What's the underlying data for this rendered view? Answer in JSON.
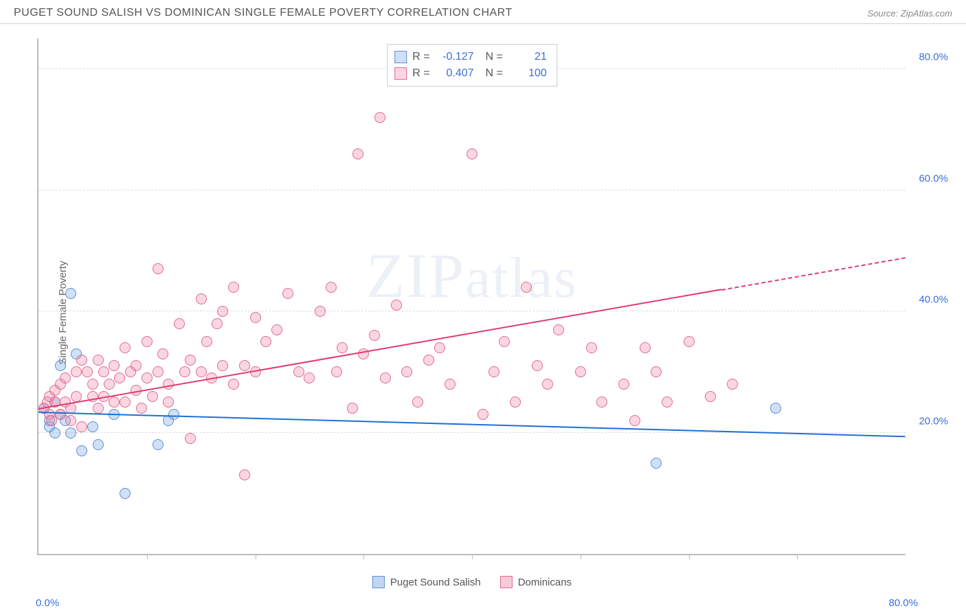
{
  "header": {
    "title": "PUGET SOUND SALISH VS DOMINICAN SINGLE FEMALE POVERTY CORRELATION CHART",
    "source_prefix": "Source: ",
    "source": "ZipAtlas.com"
  },
  "watermark": "ZIPatlas",
  "chart": {
    "type": "scatter",
    "ylabel": "Single Female Poverty",
    "xlim": [
      0,
      80
    ],
    "ylim": [
      0,
      85
    ],
    "xtick_positions": [
      10,
      20,
      30,
      40,
      50,
      60,
      70
    ],
    "gridlines_y": [
      20,
      40,
      60,
      80
    ],
    "x_axis_labels": [
      {
        "pos": 0,
        "text": "0.0%"
      },
      {
        "pos": 80,
        "text": "80.0%"
      }
    ],
    "y_axis_labels": [
      {
        "pos": 20,
        "text": "20.0%"
      },
      {
        "pos": 40,
        "text": "40.0%"
      },
      {
        "pos": 60,
        "text": "60.0%"
      },
      {
        "pos": 80,
        "text": "80.0%"
      }
    ],
    "marker_radius": 8,
    "series": [
      {
        "name": "Puget Sound Salish",
        "fill": "rgba(120,165,230,0.35)",
        "stroke": "#5b8fd6",
        "R": "-0.127",
        "N": "21",
        "trend": {
          "x1": 0,
          "y1": 23.5,
          "x2": 80,
          "y2": 19.5,
          "color": "#1e6fd6",
          "dash_from_x": 80
        },
        "points": [
          [
            0.5,
            24
          ],
          [
            1,
            22
          ],
          [
            1,
            21
          ],
          [
            1.5,
            20
          ],
          [
            1.5,
            25
          ],
          [
            2,
            23
          ],
          [
            2,
            31
          ],
          [
            2.5,
            22
          ],
          [
            3,
            20
          ],
          [
            3,
            43
          ],
          [
            3.5,
            33
          ],
          [
            4,
            17
          ],
          [
            5,
            21
          ],
          [
            5.5,
            18
          ],
          [
            7,
            23
          ],
          [
            8,
            10
          ],
          [
            11,
            18
          ],
          [
            12,
            22
          ],
          [
            12.5,
            23
          ],
          [
            57,
            15
          ],
          [
            68,
            24
          ]
        ]
      },
      {
        "name": "Dominicans",
        "fill": "rgba(240,130,160,0.32)",
        "stroke": "#e06a90",
        "R": "0.407",
        "N": "100",
        "trend": {
          "x1": 0,
          "y1": 24,
          "x2": 80,
          "y2": 49,
          "color": "#e23a6d",
          "dash_from_x": 63
        },
        "points": [
          [
            0.5,
            24
          ],
          [
            0.8,
            25
          ],
          [
            1,
            23
          ],
          [
            1,
            26
          ],
          [
            1.2,
            22
          ],
          [
            1.5,
            25
          ],
          [
            1.5,
            27
          ],
          [
            2,
            23
          ],
          [
            2,
            28
          ],
          [
            2.5,
            25
          ],
          [
            2.5,
            29
          ],
          [
            3,
            24
          ],
          [
            3,
            22
          ],
          [
            3.5,
            30
          ],
          [
            3.5,
            26
          ],
          [
            4,
            21
          ],
          [
            4,
            32
          ],
          [
            4.5,
            30
          ],
          [
            5,
            26
          ],
          [
            5,
            28
          ],
          [
            5.5,
            24
          ],
          [
            5.5,
            32
          ],
          [
            6,
            26
          ],
          [
            6,
            30
          ],
          [
            6.5,
            28
          ],
          [
            7,
            31
          ],
          [
            7,
            25
          ],
          [
            7.5,
            29
          ],
          [
            8,
            25
          ],
          [
            8,
            34
          ],
          [
            8.5,
            30
          ],
          [
            9,
            27
          ],
          [
            9,
            31
          ],
          [
            9.5,
            24
          ],
          [
            10,
            29
          ],
          [
            10,
            35
          ],
          [
            10.5,
            26
          ],
          [
            11,
            47
          ],
          [
            11,
            30
          ],
          [
            11.5,
            33
          ],
          [
            12,
            28
          ],
          [
            12,
            25
          ],
          [
            13,
            38
          ],
          [
            13.5,
            30
          ],
          [
            14,
            32
          ],
          [
            14,
            19
          ],
          [
            15,
            42
          ],
          [
            15,
            30
          ],
          [
            15.5,
            35
          ],
          [
            16,
            29
          ],
          [
            16.5,
            38
          ],
          [
            17,
            31
          ],
          [
            17,
            40
          ],
          [
            18,
            28
          ],
          [
            18,
            44
          ],
          [
            19,
            31
          ],
          [
            19,
            13
          ],
          [
            20,
            30
          ],
          [
            20,
            39
          ],
          [
            21,
            35
          ],
          [
            22,
            37
          ],
          [
            23,
            43
          ],
          [
            24,
            30
          ],
          [
            25,
            29
          ],
          [
            26,
            40
          ],
          [
            27,
            44
          ],
          [
            27.5,
            30
          ],
          [
            28,
            34
          ],
          [
            29,
            24
          ],
          [
            29.5,
            66
          ],
          [
            30,
            33
          ],
          [
            31,
            36
          ],
          [
            31.5,
            72
          ],
          [
            32,
            29
          ],
          [
            33,
            41
          ],
          [
            34,
            30
          ],
          [
            35,
            25
          ],
          [
            36,
            32
          ],
          [
            37,
            34
          ],
          [
            38,
            28
          ],
          [
            40,
            66
          ],
          [
            41,
            23
          ],
          [
            42,
            30
          ],
          [
            43,
            35
          ],
          [
            44,
            25
          ],
          [
            45,
            44
          ],
          [
            46,
            31
          ],
          [
            47,
            28
          ],
          [
            48,
            37
          ],
          [
            50,
            30
          ],
          [
            51,
            34
          ],
          [
            52,
            25
          ],
          [
            54,
            28
          ],
          [
            55,
            22
          ],
          [
            56,
            34
          ],
          [
            57,
            30
          ],
          [
            58,
            25
          ],
          [
            60,
            35
          ],
          [
            62,
            26
          ],
          [
            64,
            28
          ]
        ]
      }
    ],
    "bottom_legend": [
      {
        "label": "Puget Sound Salish",
        "fill": "rgba(120,165,230,0.45)",
        "stroke": "#5b8fd6"
      },
      {
        "label": "Dominicans",
        "fill": "rgba(240,130,160,0.42)",
        "stroke": "#e06a90"
      }
    ]
  }
}
